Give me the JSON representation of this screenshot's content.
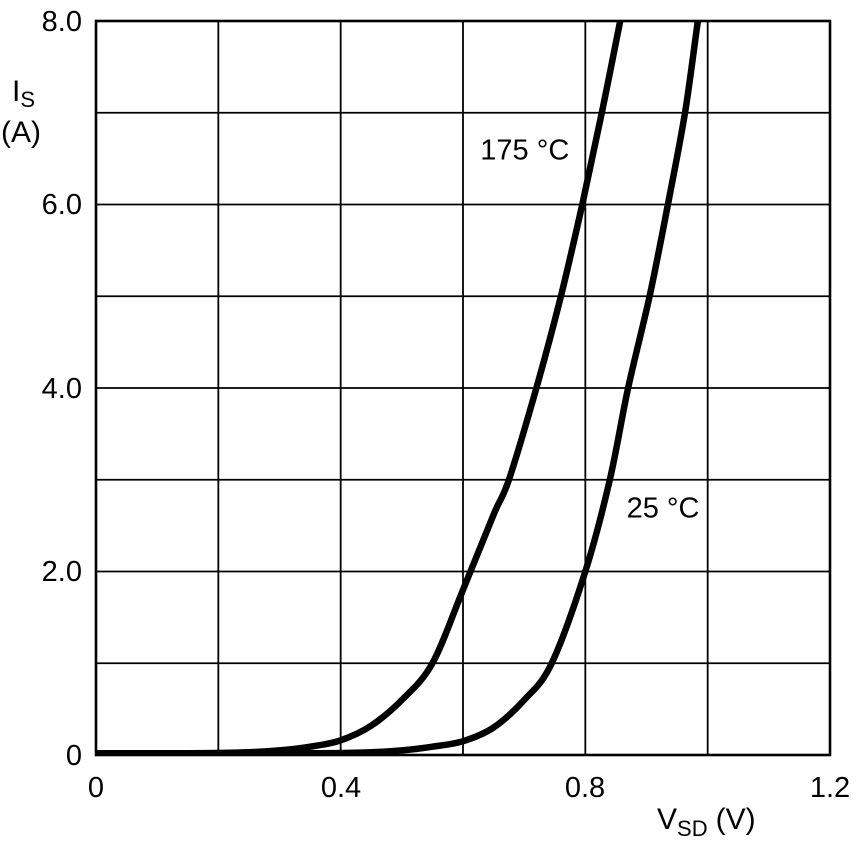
{
  "chart_data": {
    "type": "line",
    "title": "",
    "xlabel": {
      "main": "V",
      "sub": "SD",
      "unit": "(V)"
    },
    "ylabel": {
      "main": "I",
      "sub": "S",
      "unit": "(A)"
    },
    "xlim": [
      0,
      1.2
    ],
    "ylim": [
      0,
      8
    ],
    "x_grid_step": 0.2,
    "y_grid_step": 1,
    "grid": true,
    "line_color": "#010101",
    "x_ticks": [
      {
        "value": 0,
        "label": "0"
      },
      {
        "value": 0.4,
        "label": "0.4"
      },
      {
        "value": 0.8,
        "label": "0.8"
      },
      {
        "value": 1.2,
        "label": "1.2"
      }
    ],
    "y_ticks": [
      {
        "value": 8,
        "label": "8.0"
      },
      {
        "value": 6,
        "label": "6.0"
      },
      {
        "value": 4,
        "label": "4.0"
      },
      {
        "value": 2,
        "label": "2.0"
      },
      {
        "value": 0,
        "label": "0"
      }
    ],
    "series": [
      {
        "name": "175 °C",
        "color": "#010101",
        "points": [
          [
            0.0,
            0.02
          ],
          [
            0.15,
            0.02
          ],
          [
            0.25,
            0.03
          ],
          [
            0.3,
            0.05
          ],
          [
            0.35,
            0.09
          ],
          [
            0.4,
            0.16
          ],
          [
            0.45,
            0.32
          ],
          [
            0.5,
            0.6
          ],
          [
            0.55,
            1.0
          ],
          [
            0.6,
            1.8
          ],
          [
            0.65,
            2.62
          ],
          [
            0.675,
            3.0
          ],
          [
            0.72,
            4.0
          ],
          [
            0.76,
            5.0
          ],
          [
            0.795,
            6.0
          ],
          [
            0.827,
            7.0
          ],
          [
            0.857,
            8.0
          ],
          [
            0.868,
            8.35
          ]
        ]
      },
      {
        "name": "25 °C",
        "color": "#010101",
        "points": [
          [
            0.0,
            0.02
          ],
          [
            0.35,
            0.02
          ],
          [
            0.45,
            0.03
          ],
          [
            0.5,
            0.05
          ],
          [
            0.55,
            0.09
          ],
          [
            0.6,
            0.15
          ],
          [
            0.65,
            0.3
          ],
          [
            0.7,
            0.6
          ],
          [
            0.745,
            1.0
          ],
          [
            0.8,
            2.0
          ],
          [
            0.84,
            3.0
          ],
          [
            0.87,
            4.0
          ],
          [
            0.905,
            5.0
          ],
          [
            0.935,
            6.0
          ],
          [
            0.963,
            7.0
          ],
          [
            0.984,
            8.0
          ],
          [
            0.993,
            8.35
          ]
        ]
      }
    ],
    "annotations": [
      {
        "text": "175 °C",
        "x": 0.701,
        "y": 6.6,
        "series": "175 °C"
      },
      {
        "text": "25 °C",
        "x": 0.927,
        "y": 2.7,
        "series": "25 °C"
      }
    ]
  }
}
